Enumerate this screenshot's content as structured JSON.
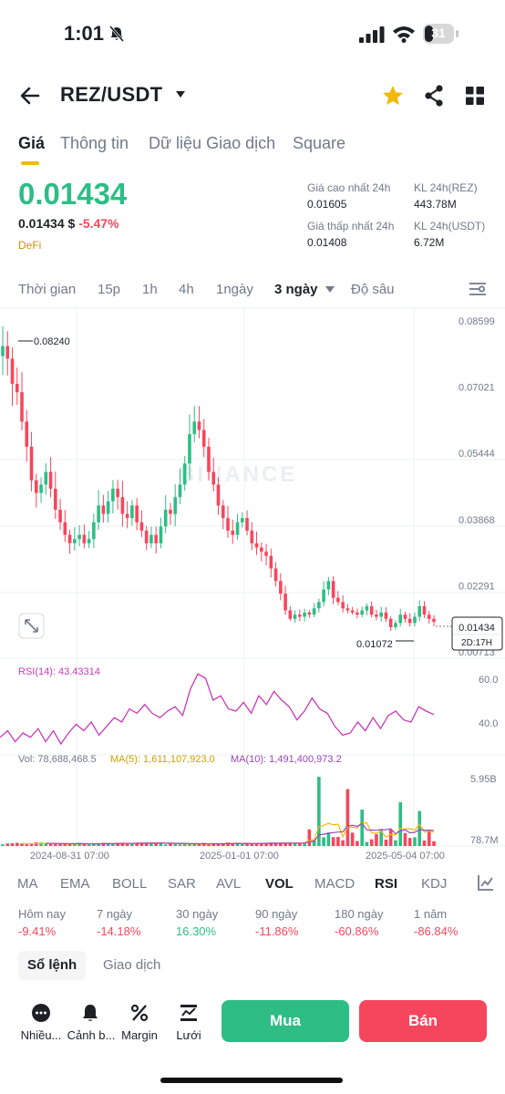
{
  "status_bar": {
    "time": "1:01",
    "battery": "31",
    "battery_level": 0.31
  },
  "header": {
    "pair": "REZ/USDT"
  },
  "tabs": [
    {
      "label": "Giá"
    },
    {
      "label": "Thông tin"
    },
    {
      "label": "Dữ liệu Giao dịch"
    },
    {
      "label": "Square"
    }
  ],
  "price": {
    "last": "0.01434",
    "usd": "0.01434 $",
    "change": "-5.47%",
    "tag": "DeFi"
  },
  "stats": {
    "high_label": "Giá cao nhất 24h",
    "high": "0.01605",
    "low_label": "Giá thấp nhất 24h",
    "low": "0.01408",
    "vol_rez_label": "KL 24h(REZ)",
    "vol_rez": "443.78M",
    "vol_usdt_label": "KL 24h(USDT)",
    "vol_usdt": "6.72M"
  },
  "timeframes": [
    "Thời gian",
    "15p",
    "1h",
    "4h",
    "1ngày",
    "3 ngày",
    "Độ sâu"
  ],
  "chart_data": {
    "type": "candlestick",
    "interval": "3 ngày",
    "watermark": "BINANCE",
    "price_axis": [
      "0.08599",
      "0.07021",
      "0.05444",
      "0.03868",
      "0.02291",
      "0.00713"
    ],
    "ylim": [
      0.00713,
      0.08599
    ],
    "high_marker": "0.08240",
    "low_marker": "0.01072",
    "current_price": "0.01434",
    "countdown": "2D:17H",
    "x_ticks": [
      "2024-08-31 07:00",
      "2025-01-01 07:00",
      "2025-05-04 07:00"
    ],
    "close_series": [
      0.08,
      0.077,
      0.071,
      0.069,
      0.062,
      0.056,
      0.048,
      0.045,
      0.047,
      0.05,
      0.046,
      0.041,
      0.038,
      0.035,
      0.033,
      0.034,
      0.035,
      0.033,
      0.034,
      0.038,
      0.042,
      0.04,
      0.043,
      0.046,
      0.044,
      0.04,
      0.039,
      0.042,
      0.038,
      0.036,
      0.033,
      0.035,
      0.033,
      0.037,
      0.041,
      0.04,
      0.044,
      0.047,
      0.052,
      0.059,
      0.062,
      0.06,
      0.056,
      0.05,
      0.047,
      0.042,
      0.039,
      0.036,
      0.035,
      0.038,
      0.039,
      0.036,
      0.033,
      0.032,
      0.031,
      0.03,
      0.027,
      0.024,
      0.021,
      0.017,
      0.015,
      0.016,
      0.0155,
      0.0165,
      0.016,
      0.0175,
      0.019,
      0.022,
      0.024,
      0.02,
      0.019,
      0.0175,
      0.017,
      0.0165,
      0.016,
      0.017,
      0.018,
      0.016,
      0.0155,
      0.0165,
      0.015,
      0.013,
      0.014,
      0.016,
      0.015,
      0.014,
      0.0155,
      0.018,
      0.016,
      0.015,
      0.0143
    ],
    "rsi": {
      "label": "RSI(14): 43.43314",
      "levels": [
        "60.0",
        "40.0"
      ],
      "values": [
        33,
        36,
        31,
        35,
        33,
        37,
        31,
        36,
        30,
        35,
        39,
        36,
        40,
        34,
        38,
        42,
        40,
        46,
        44,
        48,
        44,
        42,
        45,
        47,
        43,
        55,
        62,
        60,
        50,
        52,
        46,
        45,
        49,
        44,
        52,
        48,
        54,
        50,
        47,
        41,
        45,
        51,
        46,
        44,
        38,
        34,
        35,
        40,
        36,
        42,
        37,
        43,
        45,
        41,
        40,
        47,
        45,
        43.4
      ]
    },
    "volume": {
      "label": "Vol: 78,688,468.5",
      "ma5_label": "MA(5): 1,611,107,923.0",
      "ma10_label": "MA(10): 1,491,400,973.2",
      "axis": [
        "5.95B",
        "78.7M"
      ],
      "ymax": 5950000000
    }
  },
  "indicators": [
    {
      "label": "MA",
      "on": false
    },
    {
      "label": "EMA",
      "on": false
    },
    {
      "label": "BOLL",
      "on": false
    },
    {
      "label": "SAR",
      "on": false
    },
    {
      "label": "AVL",
      "on": false
    },
    {
      "label": "VOL",
      "on": true
    },
    {
      "label": "MACD",
      "on": false
    },
    {
      "label": "RSI",
      "on": true
    },
    {
      "label": "KDJ",
      "on": false
    }
  ],
  "performance": [
    {
      "label": "Hôm nay",
      "value": "-9.41%",
      "dir": "neg"
    },
    {
      "label": "7 ngày",
      "value": "-14.18%",
      "dir": "neg"
    },
    {
      "label": "30 ngày",
      "value": "16.30%",
      "dir": "pos"
    },
    {
      "label": "90 ngày",
      "value": "-11.86%",
      "dir": "neg"
    },
    {
      "label": "180 ngày",
      "value": "-60.86%",
      "dir": "neg"
    },
    {
      "label": "1 năm",
      "value": "-86.84%",
      "dir": "neg"
    }
  ],
  "order_tabs": [
    "Sổ lệnh",
    "Giao dịch"
  ],
  "bottom_bar": {
    "items": [
      {
        "label": "Nhiều...",
        "icon": "more-icon"
      },
      {
        "label": "Cảnh b...",
        "icon": "bell-icon"
      },
      {
        "label": "Margin",
        "icon": "percent-icon"
      },
      {
        "label": "Lưới",
        "icon": "grid-bot-icon"
      }
    ],
    "buy": "Mua",
    "sell": "Bán"
  },
  "colors": {
    "up": "#2ebd85",
    "down": "#f6465d",
    "accent": "#f0b90b",
    "rsi": "#c939b8",
    "ma5": "#f0b90b",
    "ma10": "#9a45ba"
  }
}
